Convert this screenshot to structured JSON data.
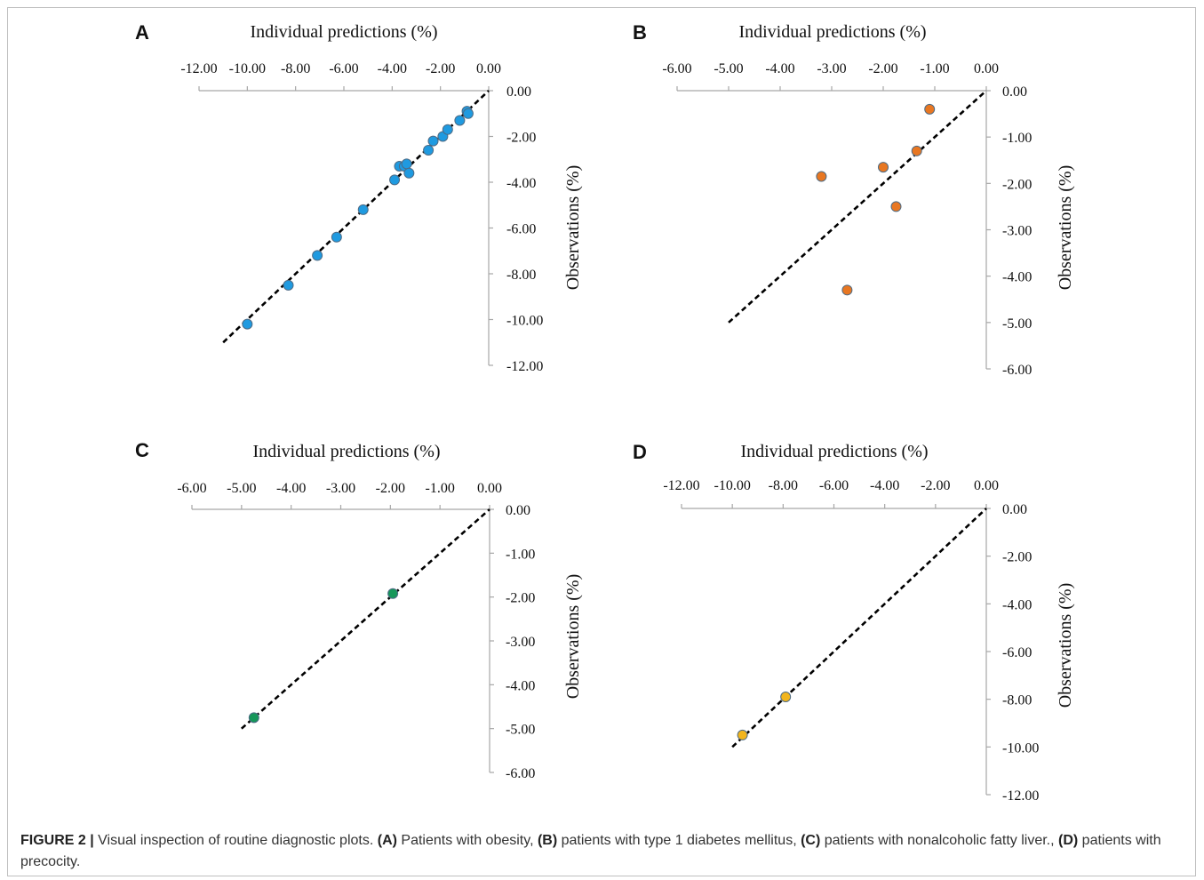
{
  "chart_data": [
    {
      "type": "scatter",
      "panel": "A",
      "x_title": "Individual predictions (%)",
      "y_title": "Observations (%)",
      "x_ticks": [
        "-12.00",
        "-10.00",
        "-8.00",
        "-6.00",
        "-4.00",
        "-2.00",
        "0.00"
      ],
      "y_ticks": [
        "0.00",
        "-2.00",
        "-4.00",
        "-6.00",
        "-8.00",
        "-10.00",
        "-12.00"
      ],
      "xlim": [
        -12,
        0
      ],
      "ylim": [
        -12,
        0
      ],
      "line_extent": [
        -11.0,
        0.0
      ],
      "color": "#1f9ae0",
      "points": [
        {
          "x": -10.0,
          "y": -10.2
        },
        {
          "x": -8.3,
          "y": -8.5
        },
        {
          "x": -7.1,
          "y": -7.2
        },
        {
          "x": -6.3,
          "y": -6.4
        },
        {
          "x": -5.2,
          "y": -5.2
        },
        {
          "x": -3.9,
          "y": -3.9
        },
        {
          "x": -3.7,
          "y": -3.3
        },
        {
          "x": -3.5,
          "y": -3.3
        },
        {
          "x": -3.4,
          "y": -3.2
        },
        {
          "x": -3.3,
          "y": -3.6
        },
        {
          "x": -2.5,
          "y": -2.6
        },
        {
          "x": -2.3,
          "y": -2.2
        },
        {
          "x": -1.9,
          "y": -2.0
        },
        {
          "x": -1.7,
          "y": -1.7
        },
        {
          "x": -1.2,
          "y": -1.3
        },
        {
          "x": -0.9,
          "y": -0.9
        },
        {
          "x": -0.85,
          "y": -1.0
        }
      ]
    },
    {
      "type": "scatter",
      "panel": "B",
      "x_title": "Individual predictions (%)",
      "y_title": "Observations (%)",
      "x_ticks": [
        "-6.00",
        "-5.00",
        "-4.00",
        "-3.00",
        "-2.00",
        "-1.00",
        "0.00"
      ],
      "y_ticks": [
        "0.00",
        "-1.00",
        "-2.00",
        "-3.00",
        "-4.00",
        "-5.00",
        "-6.00"
      ],
      "xlim": [
        -6,
        0
      ],
      "ylim": [
        -6,
        0
      ],
      "line_extent": [
        -5.0,
        0.0
      ],
      "color": "#e87722",
      "points": [
        {
          "x": -1.1,
          "y": -0.4
        },
        {
          "x": -1.35,
          "y": -1.3
        },
        {
          "x": -2.0,
          "y": -1.65
        },
        {
          "x": -3.2,
          "y": -1.85
        },
        {
          "x": -1.75,
          "y": -2.5
        },
        {
          "x": -2.7,
          "y": -4.3
        }
      ]
    },
    {
      "type": "scatter",
      "panel": "C",
      "x_title": "Individual predictions (%)",
      "y_title": "Observations (%)",
      "x_ticks": [
        "-6.00",
        "-5.00",
        "-4.00",
        "-3.00",
        "-2.00",
        "-1.00",
        "0.00"
      ],
      "y_ticks": [
        "0.00",
        "-1.00",
        "-2.00",
        "-3.00",
        "-4.00",
        "-5.00",
        "-6.00"
      ],
      "xlim": [
        -6,
        0
      ],
      "ylim": [
        -6,
        0
      ],
      "line_extent": [
        -5.0,
        0.0
      ],
      "color": "#16975a",
      "points": [
        {
          "x": -1.95,
          "y": -1.92
        },
        {
          "x": -4.75,
          "y": -4.75
        }
      ]
    },
    {
      "type": "scatter",
      "panel": "D",
      "x_title": "Individual predictions (%)",
      "y_title": "Observations (%)",
      "x_ticks": [
        "-12.00",
        "-10.00",
        "-8.00",
        "-6.00",
        "-4.00",
        "-2.00",
        "0.00"
      ],
      "y_ticks": [
        "0.00",
        "-2.00",
        "-4.00",
        "-6.00",
        "-8.00",
        "-10.00",
        "-12.00"
      ],
      "xlim": [
        -12,
        0
      ],
      "ylim": [
        -12,
        0
      ],
      "line_extent": [
        -10.0,
        0.0
      ],
      "color": "#f2b51d",
      "points": [
        {
          "x": -7.9,
          "y": -7.9
        },
        {
          "x": -9.6,
          "y": -9.5
        }
      ]
    }
  ],
  "caption": {
    "label": "FIGURE 2 |",
    "intro": " Visual inspection of routine diagnostic plots. ",
    "a_tag": "(A)",
    "a_text": " Patients with obesity, ",
    "b_tag": "(B)",
    "b_text": " patients with type 1 diabetes mellitus, ",
    "c_tag": "(C)",
    "c_text": " patients with nonalcoholic fatty liver., ",
    "d_tag": "(D)",
    "d_text": " patients with precocity."
  }
}
